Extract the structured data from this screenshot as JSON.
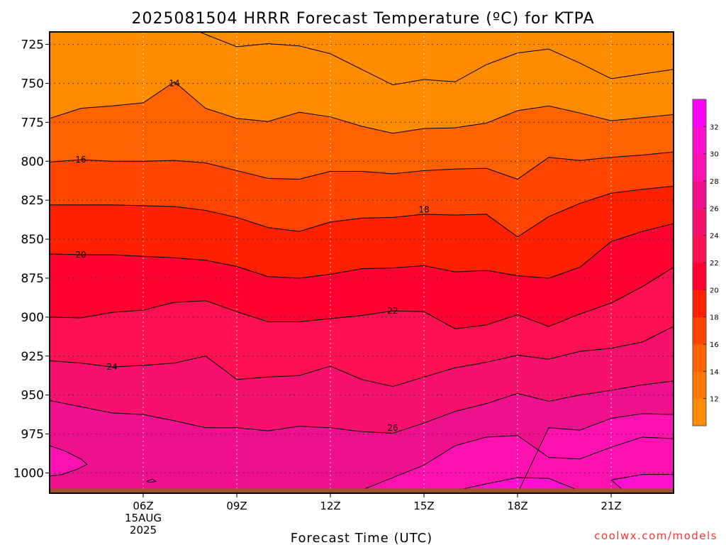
{
  "title": "2025081504 HRRR Forecast Temperature (ºC) for KTPA",
  "xlabel": "Forecast Time (UTC)",
  "watermark": "coolwx.com/models",
  "colors": {
    "terrain": "#a0522d",
    "contour_line": "#000000"
  },
  "chart_data": {
    "type": "contour",
    "title": "2025081504 HRRR Forecast Temperature (ºC) for KTPA",
    "xlabel": "Forecast Time (UTC)",
    "ylabel": "",
    "x_range_hours": [
      3,
      23
    ],
    "y_range_hpa": [
      1013,
      717
    ],
    "y_scale": "pressure",
    "grid": true,
    "y_ticks": [
      725,
      750,
      775,
      800,
      825,
      850,
      875,
      900,
      925,
      950,
      975,
      1000
    ],
    "x_ticks": [
      {
        "hour": 6,
        "label": "06Z",
        "date_line1": "15AUG",
        "date_line2": "2025"
      },
      {
        "hour": 9,
        "label": "09Z"
      },
      {
        "hour": 12,
        "label": "12Z"
      },
      {
        "hour": 15,
        "label": "15Z"
      },
      {
        "hour": 18,
        "label": "18Z"
      },
      {
        "hour": 21,
        "label": "21Z"
      }
    ],
    "surface_pressure_hpa": 1010,
    "colorbar": {
      "levels": [
        10,
        12,
        14,
        16,
        18,
        20,
        22,
        24,
        26,
        28,
        30,
        32,
        34
      ],
      "labels": [
        "12",
        "14",
        "16",
        "18",
        "20",
        "22",
        "24",
        "26",
        "28",
        "30",
        "32"
      ],
      "colors": [
        "#ff8c00",
        "#ff7700",
        "#ff6200",
        "#ff4500",
        "#ff2000",
        "#ff0030",
        "#ff1050",
        "#f8106e",
        "#ef1090",
        "#ff10b0",
        "#ff10d0",
        "#ff00ff"
      ]
    },
    "contours": [
      {
        "temp": 12,
        "label": "",
        "points": [
          [
            6.7,
            717
          ],
          [
            7.8,
            717
          ],
          [
            9,
            726.5
          ],
          [
            10,
            724.5
          ],
          [
            11,
            726
          ],
          [
            12,
            731
          ],
          [
            13,
            741
          ],
          [
            14,
            751
          ],
          [
            15,
            747.5
          ],
          [
            16,
            749
          ],
          [
            17,
            738
          ],
          [
            18,
            730.5
          ],
          [
            19,
            728
          ],
          [
            20,
            737
          ],
          [
            21,
            747
          ],
          [
            22,
            744
          ],
          [
            23,
            741
          ]
        ]
      },
      {
        "temp": 14,
        "label": "14",
        "label_at": [
          7,
          750
        ],
        "points": [
          [
            3,
            772.5
          ],
          [
            4,
            766
          ],
          [
            5,
            764.5
          ],
          [
            6,
            762.5
          ],
          [
            7,
            749
          ],
          [
            8,
            766
          ],
          [
            9,
            772.5
          ],
          [
            10,
            774.5
          ],
          [
            11,
            768.5
          ],
          [
            12,
            771.5
          ],
          [
            13,
            777.5
          ],
          [
            14,
            782
          ],
          [
            15,
            779
          ],
          [
            16,
            778.5
          ],
          [
            17,
            775.5
          ],
          [
            18,
            767.5
          ],
          [
            19,
            764.5
          ],
          [
            20,
            769
          ],
          [
            21,
            774
          ],
          [
            22,
            772
          ],
          [
            23,
            770
          ]
        ]
      },
      {
        "temp": 16,
        "label": "16",
        "label_at": [
          4,
          799
        ],
        "points": [
          [
            3,
            800.5
          ],
          [
            4,
            799
          ],
          [
            5,
            800
          ],
          [
            6,
            800
          ],
          [
            7,
            799.5
          ],
          [
            8,
            801
          ],
          [
            9,
            806
          ],
          [
            10,
            811
          ],
          [
            11,
            811.5
          ],
          [
            12,
            806.5
          ],
          [
            13,
            806.5
          ],
          [
            14,
            808
          ],
          [
            15,
            806
          ],
          [
            16,
            805
          ],
          [
            17,
            804.5
          ],
          [
            18,
            811.5
          ],
          [
            19,
            797.5
          ],
          [
            20,
            799.5
          ],
          [
            21,
            797.5
          ],
          [
            22,
            796
          ],
          [
            23,
            794
          ]
        ]
      },
      {
        "temp": 18,
        "label": "18",
        "label_at": [
          15,
          831
        ],
        "points": [
          [
            3,
            828
          ],
          [
            4,
            828
          ],
          [
            5,
            828
          ],
          [
            6,
            828.5
          ],
          [
            7,
            829
          ],
          [
            8,
            831.5
          ],
          [
            9,
            836
          ],
          [
            10,
            842.5
          ],
          [
            11,
            845
          ],
          [
            12,
            839
          ],
          [
            13,
            836.5
          ],
          [
            14,
            836
          ],
          [
            15,
            834
          ],
          [
            16,
            834.5
          ],
          [
            17,
            834
          ],
          [
            18,
            848.5
          ],
          [
            19,
            835.5
          ],
          [
            20,
            827
          ],
          [
            21,
            820.5
          ],
          [
            22,
            818
          ],
          [
            23,
            816
          ]
        ]
      },
      {
        "temp": 20,
        "label": "20",
        "label_at": [
          4,
          860
        ],
        "points": [
          [
            3,
            859.5
          ],
          [
            4,
            860
          ],
          [
            5,
            860
          ],
          [
            6,
            861
          ],
          [
            7,
            862
          ],
          [
            8,
            863.5
          ],
          [
            9,
            867.5
          ],
          [
            10,
            874
          ],
          [
            11,
            875
          ],
          [
            12,
            872.5
          ],
          [
            13,
            869
          ],
          [
            14,
            868.5
          ],
          [
            15,
            867
          ],
          [
            16,
            871
          ],
          [
            17,
            870
          ],
          [
            18,
            873.5
          ],
          [
            19,
            875
          ],
          [
            20,
            868
          ],
          [
            21,
            851.5
          ],
          [
            22,
            845
          ],
          [
            23,
            840
          ]
        ]
      },
      {
        "temp": 22,
        "label": "22",
        "label_at": [
          14,
          896
        ],
        "points": [
          [
            3,
            900
          ],
          [
            4,
            900.5
          ],
          [
            5,
            897
          ],
          [
            6,
            895.5
          ],
          [
            7,
            890.5
          ],
          [
            8,
            889.5
          ],
          [
            9,
            896.5
          ],
          [
            10,
            903
          ],
          [
            11,
            903
          ],
          [
            12,
            901
          ],
          [
            13,
            899
          ],
          [
            14,
            896
          ],
          [
            15,
            896.5
          ],
          [
            16,
            907.5
          ],
          [
            17,
            905
          ],
          [
            18,
            898.5
          ],
          [
            19,
            906
          ],
          [
            20,
            898
          ],
          [
            21,
            891
          ],
          [
            22,
            880.5
          ],
          [
            23,
            868
          ]
        ]
      },
      {
        "temp": 24,
        "label": "24",
        "label_at": [
          5,
          932
        ],
        "points": [
          [
            3,
            928
          ],
          [
            4,
            929.5
          ],
          [
            5,
            932
          ],
          [
            6,
            931
          ],
          [
            7,
            929.5
          ],
          [
            8,
            925
          ],
          [
            9,
            940
          ],
          [
            10,
            938.5
          ],
          [
            11,
            937.5
          ],
          [
            12,
            931.5
          ],
          [
            13,
            940
          ],
          [
            14,
            944.5
          ],
          [
            15,
            938.5
          ],
          [
            16,
            932.5
          ],
          [
            17,
            929
          ],
          [
            18,
            924.5
          ],
          [
            19,
            927
          ],
          [
            20,
            922
          ],
          [
            21,
            920
          ],
          [
            22,
            916
          ],
          [
            23,
            906
          ]
        ]
      },
      {
        "temp": 26,
        "label": "26",
        "label_at": [
          14,
          971
        ],
        "points": [
          [
            3,
            953.5
          ],
          [
            4,
            957.5
          ],
          [
            5,
            961.5
          ],
          [
            6,
            962.5
          ],
          [
            7,
            966.5
          ],
          [
            8,
            971
          ],
          [
            9,
            971
          ],
          [
            10,
            973
          ],
          [
            11,
            970
          ],
          [
            12,
            971
          ],
          [
            13,
            973.5
          ],
          [
            14,
            974.5
          ],
          [
            15,
            968
          ],
          [
            16,
            960.5
          ],
          [
            17,
            955.5
          ],
          [
            18,
            949
          ],
          [
            19,
            954
          ],
          [
            20,
            950
          ],
          [
            21,
            947
          ],
          [
            22,
            943.5
          ],
          [
            23,
            941
          ]
        ]
      },
      {
        "temp": 28,
        "label": "",
        "points": [
          [
            17.5,
            1013
          ],
          [
            18,
            1013
          ],
          [
            19,
            971
          ],
          [
            20,
            972.5
          ],
          [
            21,
            965
          ],
          [
            22,
            962
          ],
          [
            23,
            962.5
          ]
        ]
      },
      {
        "temp": 28,
        "label": "",
        "points": [
          [
            3,
            982.5
          ],
          [
            3.5,
            986
          ],
          [
            4,
            991
          ],
          [
            4.2,
            994.5
          ],
          [
            3.9,
            997.5
          ],
          [
            3.4,
            1001
          ],
          [
            3,
            1002
          ]
        ]
      },
      {
        "temp": 28,
        "label": "",
        "points": [
          [
            12.7,
            1013
          ],
          [
            13,
            1011
          ],
          [
            14,
            1003
          ],
          [
            15,
            995
          ],
          [
            16,
            982.5
          ],
          [
            17,
            977
          ],
          [
            18,
            976
          ],
          [
            19,
            990
          ],
          [
            20,
            991
          ],
          [
            21,
            983.5
          ],
          [
            22,
            977
          ],
          [
            23,
            978
          ]
        ]
      },
      {
        "temp": 30,
        "label": "",
        "points": [
          [
            15.6,
            1013
          ],
          [
            17,
            1007
          ],
          [
            18,
            1003
          ],
          [
            19,
            1003.5
          ],
          [
            20,
            1011.5
          ],
          [
            20.5,
            1013
          ]
        ]
      },
      {
        "temp": 30,
        "label": "",
        "points": [
          [
            21.5,
            1013
          ],
          [
            21,
            1004.5
          ],
          [
            22,
            1001
          ],
          [
            23,
            1001
          ]
        ]
      },
      {
        "temp": 30,
        "label": "",
        "points": [
          [
            6.1,
            1005.5
          ],
          [
            6.3,
            1004
          ],
          [
            6.4,
            1005.5
          ],
          [
            6.2,
            1006
          ],
          [
            6.1,
            1005.5
          ]
        ]
      }
    ]
  }
}
